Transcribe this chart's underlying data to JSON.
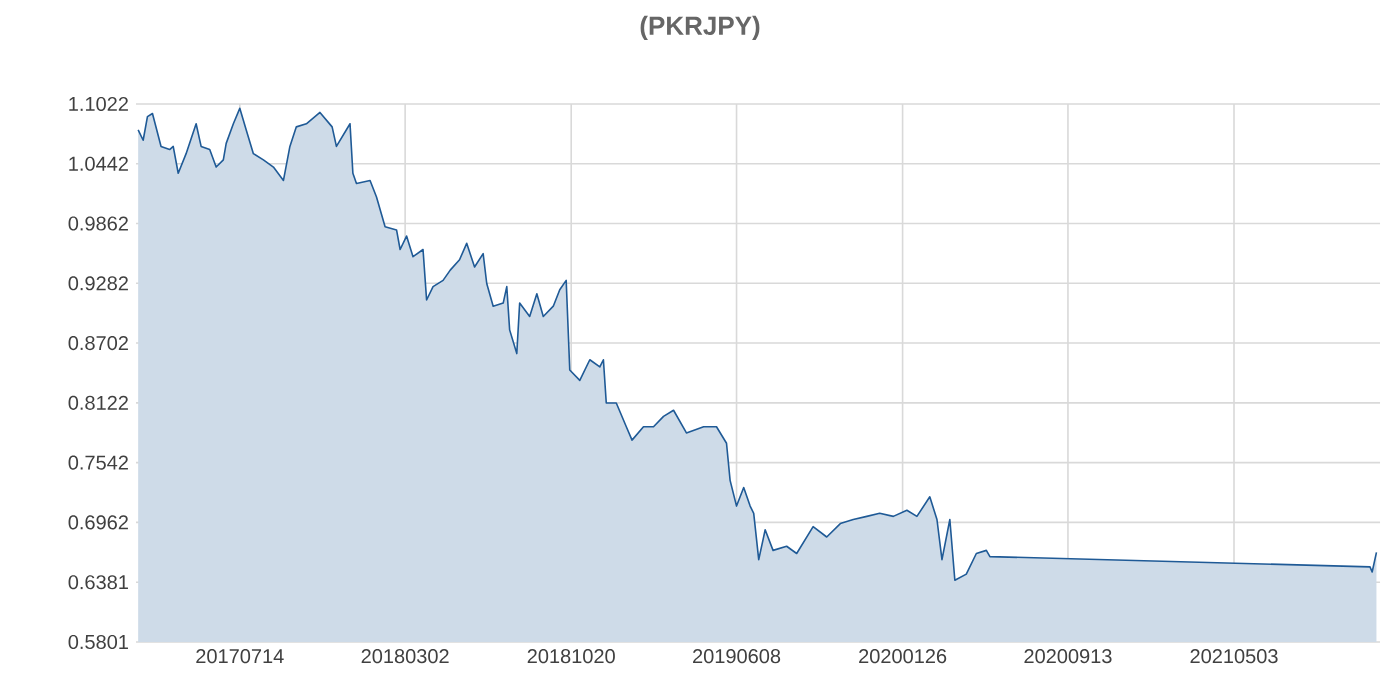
{
  "chart_data": {
    "type": "area",
    "title": "(PKRJPY)",
    "color": "#1f5a96",
    "grid": true,
    "xlim": [
      "2017-02-19",
      "2021-11-23"
    ],
    "xticks": [
      {
        "value": "2017-07-14",
        "label": "20170714"
      },
      {
        "value": "2018-03-02",
        "label": "20180302"
      },
      {
        "value": "2018-10-20",
        "label": "20181020"
      },
      {
        "value": "2019-06-08",
        "label": "20190608"
      },
      {
        "value": "2020-01-26",
        "label": "20200126"
      },
      {
        "value": "2020-09-13",
        "label": "20200913"
      },
      {
        "value": "2021-05-03",
        "label": "20210503"
      }
    ],
    "ylim": [
      0.5801,
      1.1022
    ],
    "yticks": [
      0.5801,
      0.6381,
      0.6962,
      0.7542,
      0.8122,
      0.8702,
      0.9282,
      0.9862,
      1.0442,
      1.1022
    ],
    "x": [
      "2017-02-22",
      "2017-03-01",
      "2017-03-07",
      "2017-03-14",
      "2017-03-26",
      "2017-04-07",
      "2017-04-12",
      "2017-04-19",
      "2017-04-30",
      "2017-05-14",
      "2017-05-21",
      "2017-06-02",
      "2017-06-11",
      "2017-06-21",
      "2017-06-25",
      "2017-07-05",
      "2017-07-14",
      "2017-07-23",
      "2017-08-02",
      "2017-08-16",
      "2017-08-30",
      "2017-09-13",
      "2017-09-22",
      "2017-10-01",
      "2017-10-15",
      "2017-11-03",
      "2017-11-20",
      "2017-11-26",
      "2017-12-15",
      "2017-12-19",
      "2017-12-24",
      "2018-01-12",
      "2018-01-21",
      "2018-02-02",
      "2018-02-18",
      "2018-02-23",
      "2018-03-04",
      "2018-03-13",
      "2018-03-27",
      "2018-04-01",
      "2018-04-10",
      "2018-04-24",
      "2018-05-04",
      "2018-05-17",
      "2018-05-27",
      "2018-06-07",
      "2018-06-19",
      "2018-06-24",
      "2018-07-03",
      "2018-07-17",
      "2018-07-22",
      "2018-07-26",
      "2018-08-05",
      "2018-08-09",
      "2018-08-23",
      "2018-09-02",
      "2018-09-11",
      "2018-09-25",
      "2018-10-04",
      "2018-10-13",
      "2018-10-18",
      "2018-11-01",
      "2018-11-15",
      "2018-11-29",
      "2018-12-04",
      "2018-12-08",
      "2018-12-22",
      "2019-01-05",
      "2019-01-13",
      "2019-01-29",
      "2019-02-12",
      "2019-02-26",
      "2019-03-12",
      "2019-03-30",
      "2019-04-23",
      "2019-05-11",
      "2019-05-25",
      "2019-05-30",
      "2019-06-08",
      "2019-06-18",
      "2019-06-27",
      "2019-07-02",
      "2019-07-09",
      "2019-07-18",
      "2019-07-29",
      "2019-08-17",
      "2019-08-31",
      "2019-09-23",
      "2019-10-12",
      "2019-10-31",
      "2019-11-18",
      "2019-12-07",
      "2019-12-25",
      "2020-01-13",
      "2020-02-01",
      "2020-02-15",
      "2020-03-04",
      "2020-03-14",
      "2020-03-21",
      "2020-04-01",
      "2020-04-08",
      "2020-04-24",
      "2020-05-08",
      "2020-05-22",
      "2020-05-27",
      "2021-11-09",
      "2021-11-12",
      "2021-11-18"
    ],
    "values": [
      1.077,
      1.067,
      1.09,
      1.093,
      1.061,
      1.058,
      1.061,
      1.035,
      1.054,
      1.083,
      1.061,
      1.058,
      1.041,
      1.048,
      1.064,
      1.083,
      1.098,
      1.077,
      1.054,
      1.048,
      1.041,
      1.028,
      1.061,
      1.08,
      1.083,
      1.094,
      1.08,
      1.061,
      1.083,
      1.035,
      1.025,
      1.028,
      1.012,
      0.983,
      0.98,
      0.961,
      0.974,
      0.954,
      0.961,
      0.912,
      0.925,
      0.931,
      0.941,
      0.951,
      0.967,
      0.944,
      0.957,
      0.928,
      0.906,
      0.909,
      0.925,
      0.883,
      0.86,
      0.909,
      0.896,
      0.918,
      0.896,
      0.906,
      0.922,
      0.931,
      0.844,
      0.834,
      0.854,
      0.847,
      0.854,
      0.812,
      0.812,
      0.789,
      0.776,
      0.789,
      0.789,
      0.799,
      0.805,
      0.783,
      0.789,
      0.789,
      0.773,
      0.737,
      0.712,
      0.73,
      0.712,
      0.705,
      0.66,
      0.689,
      0.669,
      0.673,
      0.666,
      0.692,
      0.682,
      0.695,
      0.699,
      0.702,
      0.705,
      0.702,
      0.708,
      0.702,
      0.721,
      0.699,
      0.66,
      0.699,
      0.64,
      0.646,
      0.666,
      0.669,
      0.663,
      0.653,
      0.648,
      0.667
    ]
  }
}
